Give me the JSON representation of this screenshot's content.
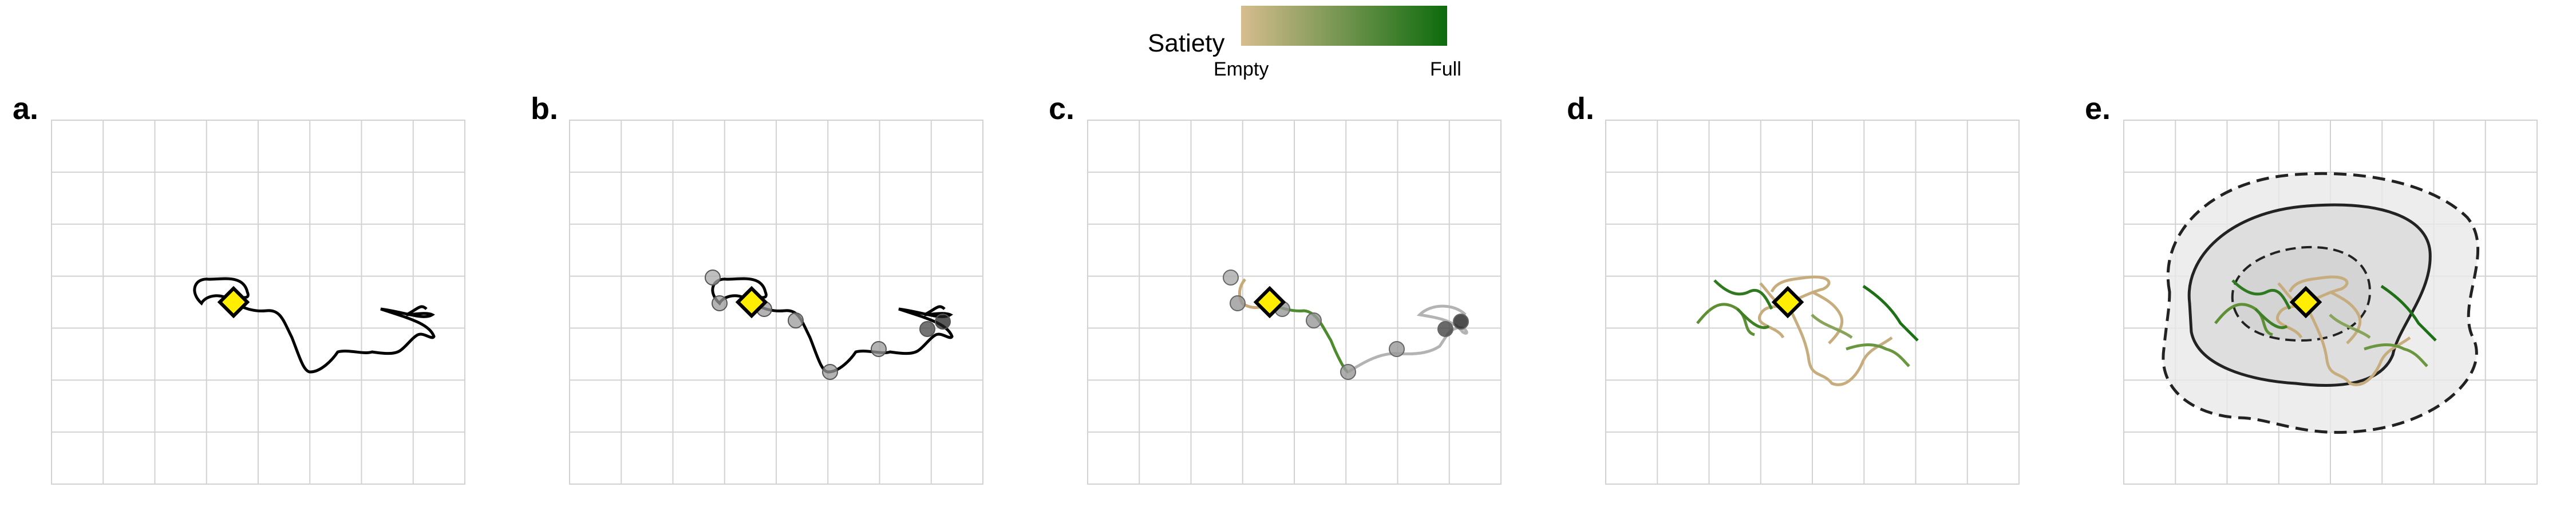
{
  "legend": {
    "title": "Satiety",
    "min_label": "Empty",
    "max_label": "Full",
    "color_empty": "#d6bd8f",
    "color_full": "#0d6b0d"
  },
  "colors": {
    "path_dark": "#000000",
    "path_gray": "#b3b3b3",
    "marker_fill": "#ffee00",
    "marker_stroke": "#000000",
    "region_fill": "#e9e9e9",
    "contour_stroke": "#222222"
  },
  "panels": [
    {
      "label": "a.",
      "type": "trajectory"
    },
    {
      "label": "b.",
      "type": "trajectory-with-stops"
    },
    {
      "label": "c.",
      "type": "trajectory-colored-by-satiety"
    },
    {
      "label": "d.",
      "type": "multiple-trajectories"
    },
    {
      "label": "e.",
      "type": "trajectories-with-density-contours"
    }
  ]
}
